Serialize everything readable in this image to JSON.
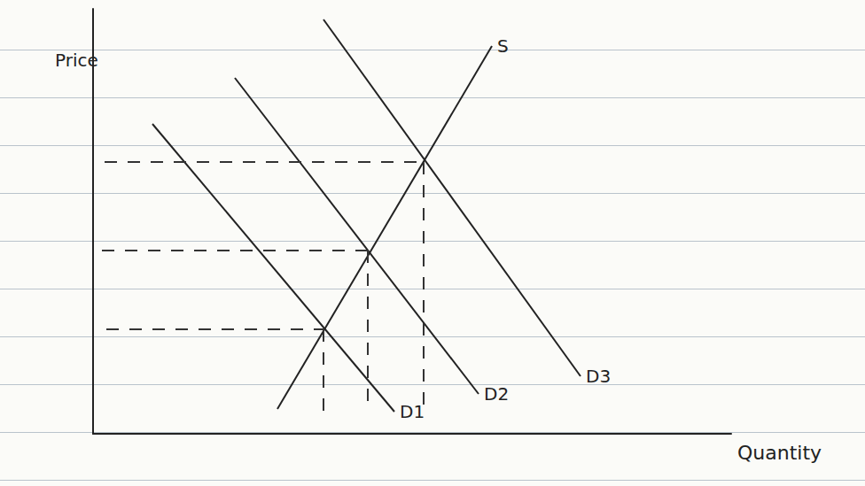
{
  "chart_data": {
    "type": "line",
    "x_label": "Quantity",
    "y_label": "Price",
    "xlim": [
      0,
      72
    ],
    "ylim": [
      0,
      48
    ],
    "tick_labels": false,
    "grid": false,
    "series": [
      {
        "name": "S",
        "color": "#222222",
        "x": [
          20.8,
          45
        ],
        "values": [
          2.8,
          43.8
        ]
      },
      {
        "name": "D1",
        "color": "#222222",
        "x": [
          6.7,
          34
        ],
        "values": [
          35,
          2.5
        ]
      },
      {
        "name": "D2",
        "color": "#222222",
        "x": [
          16,
          43.5
        ],
        "values": [
          40.2,
          4.5
        ]
      },
      {
        "name": "D3",
        "color": "#222222",
        "x": [
          26,
          55
        ],
        "values": [
          46.8,
          6.5
        ]
      }
    ],
    "guides": [
      {
        "x": [
          1.5,
          26
        ],
        "values": [
          11.8,
          11.8
        ],
        "line_style": "dashed"
      },
      {
        "x": [
          1,
          31
        ],
        "values": [
          20.7,
          20.7
        ],
        "line_style": "dashed"
      },
      {
        "x": [
          1.3,
          37.3
        ],
        "values": [
          30.7,
          30.7
        ],
        "line_style": "dashed"
      },
      {
        "x": [
          26,
          26
        ],
        "values": [
          11.8,
          2.5
        ],
        "line_style": "dashed"
      },
      {
        "x": [
          31,
          31
        ],
        "values": [
          20.7,
          2.5
        ],
        "line_style": "dashed"
      },
      {
        "x": [
          37.3,
          37.3
        ],
        "values": [
          30.7,
          2.5
        ],
        "line_style": "dashed"
      }
    ]
  }
}
